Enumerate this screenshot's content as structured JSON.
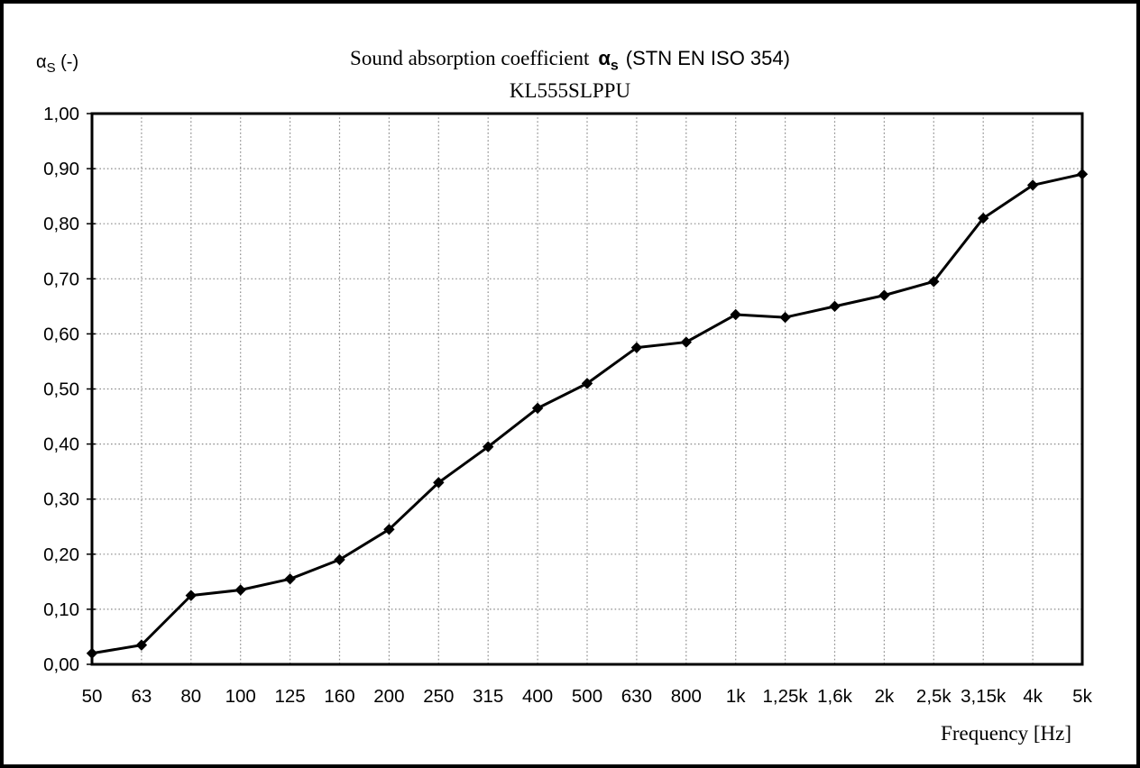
{
  "frame": {
    "background": "#ffffff",
    "border_color": "#000000"
  },
  "header": {
    "y_axis_unit": {
      "alpha": "α",
      "sub": "S",
      "rest": "(-)"
    },
    "title": {
      "prefix": "Sound absorption coefficient",
      "alpha": "α",
      "alpha_sub": "s",
      "suffix": "(STN EN ISO 354)"
    },
    "subtitle": "KL555SLPPU"
  },
  "footer": {
    "x_axis_label": "Frequency [Hz]"
  },
  "chart_data": {
    "type": "line",
    "title": "Sound absorption coefficient αs (STN EN ISO 354)",
    "subtitle": "KL555SLPPU",
    "xlabel": "Frequency [Hz]",
    "ylabel": "αS (-)",
    "categories": [
      "50",
      "63",
      "80",
      "100",
      "125",
      "160",
      "200",
      "250",
      "315",
      "400",
      "500",
      "630",
      "800",
      "1k",
      "1,25k",
      "1,6k",
      "2k",
      "2,5k",
      "3,15k",
      "4k",
      "5k"
    ],
    "values": [
      0.02,
      0.035,
      0.125,
      0.135,
      0.155,
      0.19,
      0.245,
      0.33,
      0.395,
      0.465,
      0.51,
      0.575,
      0.585,
      0.635,
      0.63,
      0.65,
      0.67,
      0.695,
      0.81,
      0.87,
      0.89
    ],
    "y_ticks": [
      0.0,
      0.1,
      0.2,
      0.3,
      0.4,
      0.5,
      0.6,
      0.7,
      0.8,
      0.9,
      1.0
    ],
    "y_tick_labels": [
      "0,00",
      "0,10",
      "0,20",
      "0,30",
      "0,40",
      "0,50",
      "0,60",
      "0,70",
      "0,80",
      "0,90",
      "1,00"
    ],
    "ylim": [
      0,
      1
    ],
    "grid": "dotted",
    "legend": "none",
    "line_color": "#000000",
    "marker": "diamond",
    "marker_color": "#000000",
    "gridline_color": "#8c8c8c",
    "frame_color": "#000000",
    "tick_label_color": "#000000"
  }
}
